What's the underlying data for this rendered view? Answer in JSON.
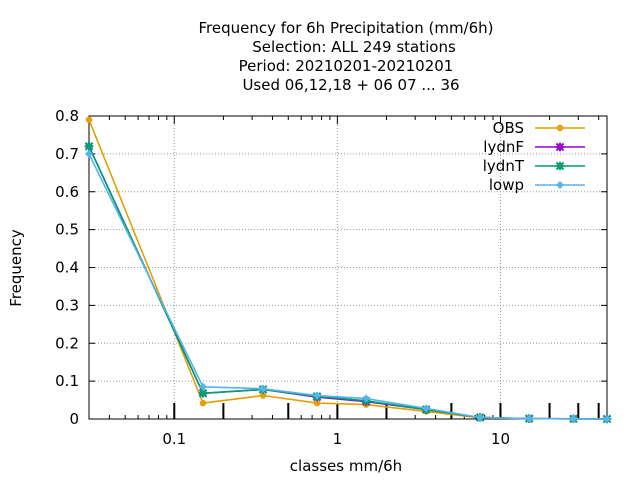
{
  "chart_data": {
    "type": "line",
    "title_lines": [
      "Frequency  for 6h Precipitation (mm/6h)",
      "Selection: ALL    249 stations",
      "Period: 20210201-20210201",
      "Used  06,12,18 + 06 07 ... 36"
    ],
    "xlabel": "classes mm/6h",
    "ylabel": "Frequency",
    "xscale": "log",
    "xlim": [
      0.03,
      45
    ],
    "ylim": [
      0,
      0.8
    ],
    "xticks": [
      {
        "v": 0.1,
        "label": "0.1"
      },
      {
        "v": 1,
        "label": "1"
      },
      {
        "v": 10,
        "label": "10"
      }
    ],
    "yticks": [
      {
        "v": 0,
        "label": "0"
      },
      {
        "v": 0.1,
        "label": "0.1"
      },
      {
        "v": 0.2,
        "label": "0.2"
      },
      {
        "v": 0.3,
        "label": "0.3"
      },
      {
        "v": 0.4,
        "label": "0.4"
      },
      {
        "v": 0.5,
        "label": "0.5"
      },
      {
        "v": 0.6,
        "label": "0.6"
      },
      {
        "v": 0.7,
        "label": "0.7"
      },
      {
        "v": 0.8,
        "label": "0.8"
      }
    ],
    "grid": true,
    "legend_position": "top-right",
    "x": [
      0.03,
      0.15,
      0.35,
      0.75,
      1.5,
      3.5,
      7.5,
      15,
      28,
      45
    ],
    "series": [
      {
        "name": "OBS",
        "color": "#e69f00",
        "marker": "circle",
        "values": [
          0.79,
          0.042,
          0.062,
          0.042,
          0.038,
          0.02,
          0.003,
          0.001,
          0.0005,
          0.0002
        ]
      },
      {
        "name": "lydnF",
        "color": "#9400d3",
        "marker": "star",
        "values": [
          0.72,
          0.068,
          0.078,
          0.058,
          0.046,
          0.025,
          0.004,
          0.001,
          0.0005,
          0.0002
        ]
      },
      {
        "name": "lydnT",
        "color": "#009e73",
        "marker": "star",
        "values": [
          0.72,
          0.068,
          0.078,
          0.06,
          0.048,
          0.025,
          0.004,
          0.001,
          0.0005,
          0.0002
        ]
      },
      {
        "name": "lowp",
        "color": "#56b4e9",
        "marker": "diamond",
        "values": [
          0.7,
          0.085,
          0.08,
          0.062,
          0.054,
          0.028,
          0.004,
          0.001,
          0.0005,
          0.0002
        ]
      }
    ],
    "bottom_bar_ticks": [
      0.1,
      0.2,
      0.5,
      1,
      2,
      5,
      10,
      20,
      30,
      40
    ]
  }
}
